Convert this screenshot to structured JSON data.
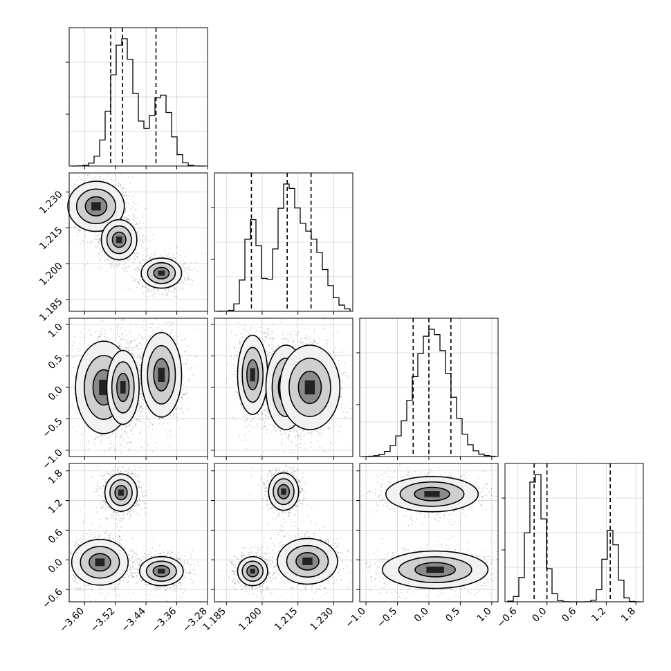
{
  "chart_data": {
    "type": "corner",
    "background": "#ffffff",
    "line_color": "#000000",
    "grid": true,
    "parameters": [
      {
        "range": [
          -3.64,
          -3.28
        ],
        "ticks": [
          "−3.60",
          "−3.52",
          "−3.44",
          "−3.36",
          "−3.28"
        ],
        "tick_values": [
          -3.6,
          -3.52,
          -3.44,
          -3.36,
          -3.28
        ],
        "quantiles": [
          -3.532,
          -3.501,
          -3.414
        ],
        "hist_peaks": [
          [
            -3.5,
            1.0
          ],
          [
            -3.4,
            0.56
          ]
        ],
        "hist_widths": [
          0.03,
          0.025
        ],
        "hist_bins": 24
      },
      {
        "range": [
          1.18,
          1.238
        ],
        "ticks": [
          "1.185",
          "1.200",
          "1.215",
          "1.230"
        ],
        "tick_values": [
          1.185,
          1.2,
          1.215,
          1.23
        ],
        "quantiles": [
          1.1955,
          1.2105,
          1.2205
        ],
        "hist_peaks": [
          [
            1.196,
            0.72
          ],
          [
            1.21,
            0.85
          ],
          [
            1.22,
            0.58
          ]
        ],
        "hist_widths": [
          0.003,
          0.004,
          0.006
        ],
        "hist_bins": 24
      },
      {
        "range": [
          -1.1,
          1.1
        ],
        "ticks": [
          "−1.0",
          "−0.5",
          "0.0",
          "0.5",
          "1.0"
        ],
        "tick_values": [
          -1.0,
          -0.5,
          0.0,
          0.5,
          1.0
        ],
        "quantiles": [
          -0.25,
          0.0,
          0.35
        ],
        "hist_peaks": [
          [
            0.05,
            1.0
          ]
        ],
        "hist_widths": [
          0.28
        ],
        "hist_bins": 24
      },
      {
        "range": [
          -0.85,
          1.95
        ],
        "ticks": [
          "−0.6",
          "0.0",
          "0.6",
          "1.2",
          "1.8"
        ],
        "tick_values": [
          -0.6,
          0.0,
          0.6,
          1.2,
          1.8
        ],
        "quantiles": [
          -0.26,
          0.0,
          1.28
        ],
        "hist_peaks": [
          [
            -0.22,
            1.0
          ],
          [
            1.3,
            0.55
          ]
        ],
        "hist_widths": [
          0.16,
          0.13
        ],
        "hist_bins": 24
      }
    ],
    "modes_2d": [
      {
        "pair": [
          1,
          0
        ],
        "modes": [
          [
            -3.57,
            1.224,
            0.035,
            0.005
          ],
          [
            -3.51,
            1.21,
            0.022,
            0.004
          ],
          [
            -3.4,
            1.196,
            0.025,
            0.003
          ]
        ]
      },
      {
        "pair": [
          2,
          0
        ],
        "modes": [
          [
            -3.55,
            0.0,
            0.035,
            0.35
          ],
          [
            -3.5,
            0.0,
            0.02,
            0.28
          ],
          [
            -3.4,
            0.2,
            0.025,
            0.32
          ]
        ]
      },
      {
        "pair": [
          2,
          1
        ],
        "modes": [
          [
            1.196,
            0.2,
            0.003,
            0.3
          ],
          [
            1.21,
            0.0,
            0.004,
            0.32
          ],
          [
            1.22,
            0.0,
            0.006,
            0.32
          ]
        ]
      },
      {
        "pair": [
          3,
          0
        ],
        "modes": [
          [
            -3.56,
            -0.05,
            0.035,
            0.22
          ],
          [
            -3.505,
            1.36,
            0.02,
            0.18
          ],
          [
            -3.4,
            -0.23,
            0.027,
            0.14
          ]
        ]
      },
      {
        "pair": [
          3,
          1
        ],
        "modes": [
          [
            1.196,
            -0.23,
            0.003,
            0.14
          ],
          [
            1.209,
            1.38,
            0.003,
            0.18
          ],
          [
            1.219,
            -0.03,
            0.006,
            0.22
          ]
        ]
      },
      {
        "pair": [
          3,
          2
        ],
        "modes": [
          [
            0.05,
            1.33,
            0.35,
            0.17
          ],
          [
            0.1,
            -0.2,
            0.4,
            0.18
          ]
        ]
      }
    ]
  }
}
